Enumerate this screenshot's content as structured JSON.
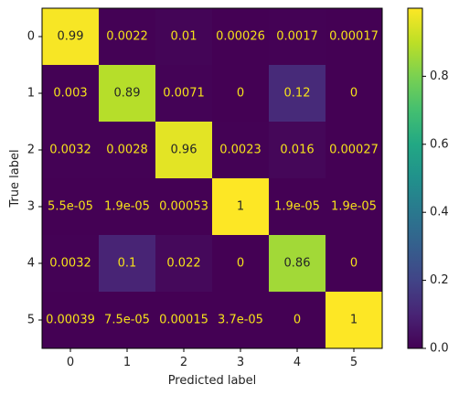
{
  "chart_data": {
    "type": "heatmap",
    "title": "",
    "xlabel": "Predicted label",
    "ylabel": "True label",
    "x_categories": [
      "0",
      "1",
      "2",
      "3",
      "4",
      "5"
    ],
    "y_categories": [
      "0",
      "1",
      "2",
      "3",
      "4",
      "5"
    ],
    "values": [
      [
        0.99,
        0.0022,
        0.01,
        0.00026,
        0.0017,
        0.00017
      ],
      [
        0.003,
        0.89,
        0.0071,
        0,
        0.12,
        0
      ],
      [
        0.0032,
        0.0028,
        0.96,
        0.0023,
        0.016,
        0.00027
      ],
      [
        5.5e-05,
        1.9e-05,
        0.00053,
        1,
        1.9e-05,
        1.9e-05
      ],
      [
        0.0032,
        0.1,
        0.022,
        0,
        0.86,
        0
      ],
      [
        0.00039,
        7.5e-05,
        0.00015,
        3.7e-05,
        0,
        1
      ]
    ],
    "cell_labels": [
      [
        "0.99",
        "0.0022",
        "0.01",
        "0.00026",
        "0.0017",
        "0.00017"
      ],
      [
        "0.003",
        "0.89",
        "0.0071",
        "0",
        "0.12",
        "0"
      ],
      [
        "0.0032",
        "0.0028",
        "0.96",
        "0.0023",
        "0.016",
        "0.00027"
      ],
      [
        "5.5e-05",
        "1.9e-05",
        "0.00053",
        "1",
        "1.9e-05",
        "1.9e-05"
      ],
      [
        "0.0032",
        "0.1",
        "0.022",
        "0",
        "0.86",
        "0"
      ],
      [
        "0.00039",
        "7.5e-05",
        "0.00015",
        "3.7e-05",
        "0",
        "1"
      ]
    ],
    "colormap": "viridis",
    "colorbar": {
      "range": [
        0,
        1
      ],
      "tick_values": [
        0.0,
        0.2,
        0.4,
        0.6,
        0.8
      ],
      "tick_labels": [
        "0.0",
        "0.2",
        "0.4",
        "0.6",
        "0.8"
      ]
    },
    "text_colors": {
      "dark": "#262626",
      "light": "#f5e11a"
    },
    "grid": false
  }
}
